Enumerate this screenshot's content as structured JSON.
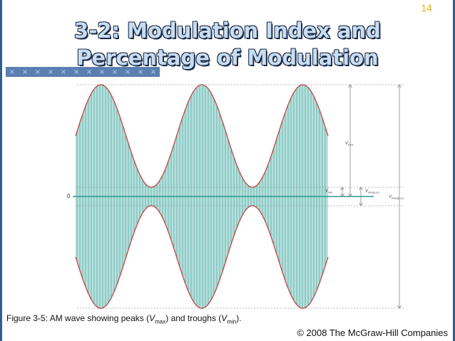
{
  "slide": {
    "number": "14",
    "title_line1": "3-2: Modulation Index and",
    "title_line2": "Percentage of Modulation",
    "deco_glyph": "×"
  },
  "figure": {
    "zero_label": "0",
    "labels": {
      "vmax": "V",
      "vmax_sub": "max",
      "vmin": "V",
      "vmin_sub": "min",
      "vminpp": "V",
      "vminpp_sub": "min(p–p)",
      "vmaxpp": "V",
      "vmaxpp_sub": "max(p–p)"
    },
    "colors": {
      "envelope": "#c0504d",
      "fill": "#b8e0dc",
      "carrier_lines": "#2a9a92",
      "axis": "#2a9a92",
      "dashed": "#777777",
      "arrows": "#888888"
    }
  },
  "caption": {
    "prefix": "Figure 3-5: AM wave showing peaks (",
    "v1": "V",
    "v1_sub": "max",
    "middle": ") and troughs (",
    "v2": "V",
    "v2_sub": "min",
    "suffix": ")."
  },
  "footer": {
    "copyright": "© 2008 The McGraw-Hill Companies"
  }
}
